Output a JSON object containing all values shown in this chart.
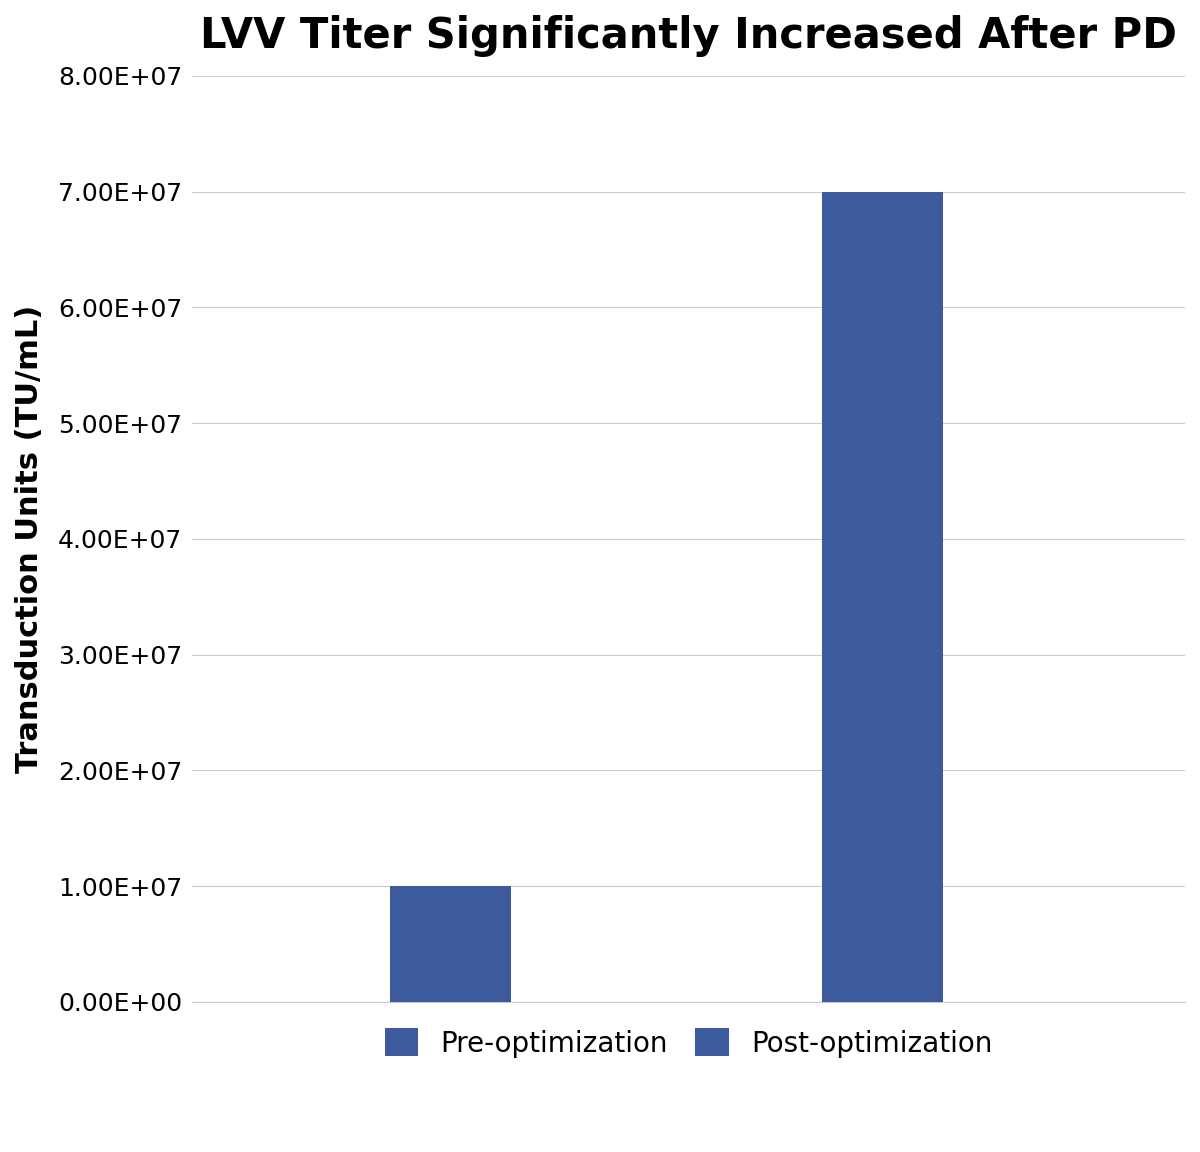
{
  "title": "LVV Titer Significantly Increased After PD",
  "ylabel": "Transduction Units (TU/mL)",
  "categories": [
    "Pre-optimization",
    "Post-optimization"
  ],
  "values": [
    10000000.0,
    70000000.0
  ],
  "bar_color": "#3D5A9E",
  "ylim": [
    0,
    80000000.0
  ],
  "yticks": [
    0,
    10000000.0,
    20000000.0,
    30000000.0,
    40000000.0,
    50000000.0,
    60000000.0,
    70000000.0,
    80000000.0
  ],
  "ytick_labels": [
    "0.00E+00",
    "1.00E+07",
    "2.00E+07",
    "3.00E+07",
    "4.00E+07",
    "5.00E+07",
    "6.00E+07",
    "7.00E+07",
    "8.00E+07"
  ],
  "title_fontsize": 30,
  "axis_label_fontsize": 22,
  "tick_fontsize": 18,
  "legend_fontsize": 20,
  "bar_width": 0.28,
  "legend_labels": [
    "Pre-optimization",
    "Post-optimization"
  ],
  "background_color": "#ffffff",
  "grid_color": "#cccccc",
  "bar_positions": [
    1,
    2
  ],
  "xlim": [
    0.4,
    2.7
  ]
}
